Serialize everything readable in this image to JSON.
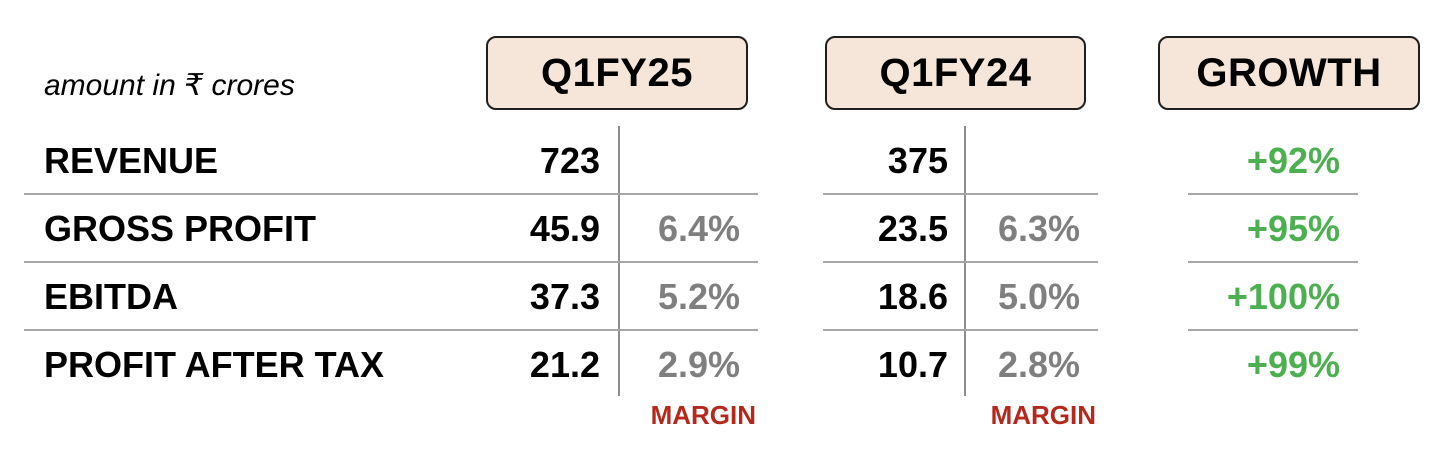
{
  "unit_note": "amount in ₹ crores",
  "columns": {
    "q1fy25": "Q1FY25",
    "q1fy24": "Q1FY24",
    "growth": "GROWTH"
  },
  "margin_label": "MARGIN",
  "rows": [
    {
      "label": "REVENUE",
      "q1fy25": "723",
      "q1fy25_margin": "",
      "q1fy24": "375",
      "q1fy24_margin": "",
      "growth": "+92%"
    },
    {
      "label": "GROSS PROFIT",
      "q1fy25": "45.9",
      "q1fy25_margin": "6.4%",
      "q1fy24": "23.5",
      "q1fy24_margin": "6.3%",
      "growth": "+95%"
    },
    {
      "label": "EBITDA",
      "q1fy25": "37.3",
      "q1fy25_margin": "5.2%",
      "q1fy24": "18.6",
      "q1fy24_margin": "5.0%",
      "growth": "+100%"
    },
    {
      "label": "PROFIT AFTER TAX",
      "q1fy25": "21.2",
      "q1fy25_margin": "2.9%",
      "q1fy24": "10.7",
      "q1fy24_margin": "2.8%",
      "growth": "+99%"
    }
  ],
  "colors": {
    "header_fill": "#f6e6da",
    "growth_text": "#4caf50",
    "margin_text": "#7f7f7f",
    "margin_label": "#b5281c"
  }
}
